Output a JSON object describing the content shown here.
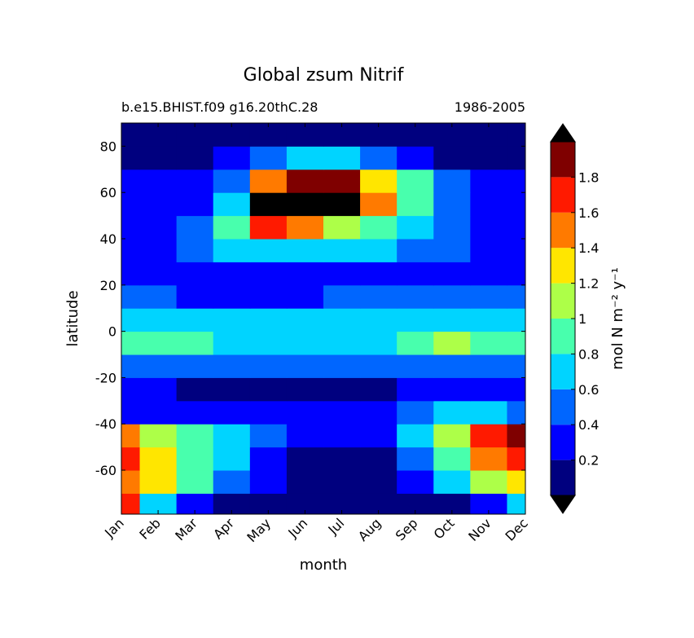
{
  "chart_data": {
    "type": "contourf",
    "title": "Global zsum Nitrif",
    "subtitle_left": "b.e15.BHIST.f09 g16.20thC.28",
    "subtitle_right": "1986-2005",
    "xlabel": "month",
    "ylabel": "latitude",
    "colorbar_label": "mol N m⁻² y⁻¹",
    "categories": [
      "Jan",
      "Feb",
      "Mar",
      "Apr",
      "May",
      "Jun",
      "Jul",
      "Aug",
      "Sep",
      "Oct",
      "Nov",
      "Dec"
    ],
    "y": [
      -75,
      -65,
      -55,
      -45,
      -35,
      -25,
      -15,
      -5,
      5,
      15,
      25,
      35,
      45,
      55,
      65,
      75,
      85
    ],
    "z": [
      [
        1.7,
        0.7,
        0.3,
        0.1,
        0.1,
        0.1,
        0.1,
        0.1,
        0.1,
        0.1,
        0.3,
        0.7
      ],
      [
        1.5,
        1.3,
        0.9,
        0.5,
        0.3,
        0.1,
        0.1,
        0.1,
        0.3,
        0.7,
        1.1,
        1.3
      ],
      [
        1.7,
        1.3,
        0.9,
        0.7,
        0.3,
        0.1,
        0.1,
        0.1,
        0.5,
        0.9,
        1.5,
        1.7
      ],
      [
        1.5,
        1.1,
        0.9,
        0.7,
        0.5,
        0.3,
        0.3,
        0.3,
        0.7,
        1.1,
        1.7,
        1.9
      ],
      [
        0.3,
        0.3,
        0.3,
        0.3,
        0.3,
        0.3,
        0.3,
        0.3,
        0.5,
        0.7,
        0.7,
        0.5
      ],
      [
        0.3,
        0.3,
        0.1,
        0.1,
        0.1,
        0.1,
        0.1,
        0.1,
        0.3,
        0.3,
        0.3,
        0.3
      ],
      [
        0.5,
        0.5,
        0.5,
        0.5,
        0.5,
        0.5,
        0.5,
        0.5,
        0.5,
        0.5,
        0.5,
        0.5
      ],
      [
        0.9,
        0.9,
        0.9,
        0.7,
        0.7,
        0.7,
        0.7,
        0.7,
        0.9,
        1.1,
        0.9,
        0.9
      ],
      [
        0.7,
        0.7,
        0.7,
        0.7,
        0.7,
        0.7,
        0.7,
        0.7,
        0.7,
        0.7,
        0.7,
        0.7
      ],
      [
        0.5,
        0.5,
        0.3,
        0.3,
        0.3,
        0.3,
        0.5,
        0.5,
        0.5,
        0.5,
        0.5,
        0.5
      ],
      [
        0.3,
        0.3,
        0.3,
        0.3,
        0.3,
        0.3,
        0.3,
        0.3,
        0.3,
        0.3,
        0.3,
        0.3
      ],
      [
        0.3,
        0.3,
        0.5,
        0.7,
        0.7,
        0.7,
        0.7,
        0.7,
        0.5,
        0.5,
        0.3,
        0.3
      ],
      [
        0.3,
        0.3,
        0.5,
        0.9,
        1.7,
        1.5,
        1.1,
        0.9,
        0.7,
        0.5,
        0.3,
        0.3
      ],
      [
        0.3,
        0.3,
        0.3,
        0.7,
        2.1,
        2.1,
        2.1,
        1.5,
        0.9,
        0.5,
        0.3,
        0.3
      ],
      [
        0.3,
        0.3,
        0.3,
        0.5,
        1.5,
        1.9,
        1.9,
        1.3,
        0.9,
        0.5,
        0.3,
        0.3
      ],
      [
        0.1,
        0.1,
        0.1,
        0.3,
        0.5,
        0.7,
        0.7,
        0.5,
        0.3,
        0.1,
        0.1,
        0.1
      ],
      [
        0.1,
        0.1,
        0.1,
        0.1,
        0.1,
        0.1,
        0.1,
        0.1,
        0.1,
        0.1,
        0.1,
        0.1
      ]
    ],
    "ylim": [
      -79,
      90
    ],
    "yticks": [
      -60,
      -40,
      -20,
      0,
      20,
      40,
      60,
      80
    ],
    "levels": [
      0,
      0.2,
      0.4,
      0.6,
      0.8,
      1,
      1.2,
      1.4,
      1.6,
      1.8,
      2
    ],
    "colors": [
      "#00007f",
      "#0000ff",
      "#0066ff",
      "#00d4ff",
      "#48ffad",
      "#adff48",
      "#ffe600",
      "#ff7a00",
      "#ff1a00",
      "#7f0000"
    ],
    "extend": "both",
    "over_color": "#000000",
    "under_color": "#000000",
    "colorbar_ticks": [
      0.2,
      0.4,
      0.6,
      0.8,
      1,
      1.2,
      1.4,
      1.6,
      1.8
    ]
  }
}
